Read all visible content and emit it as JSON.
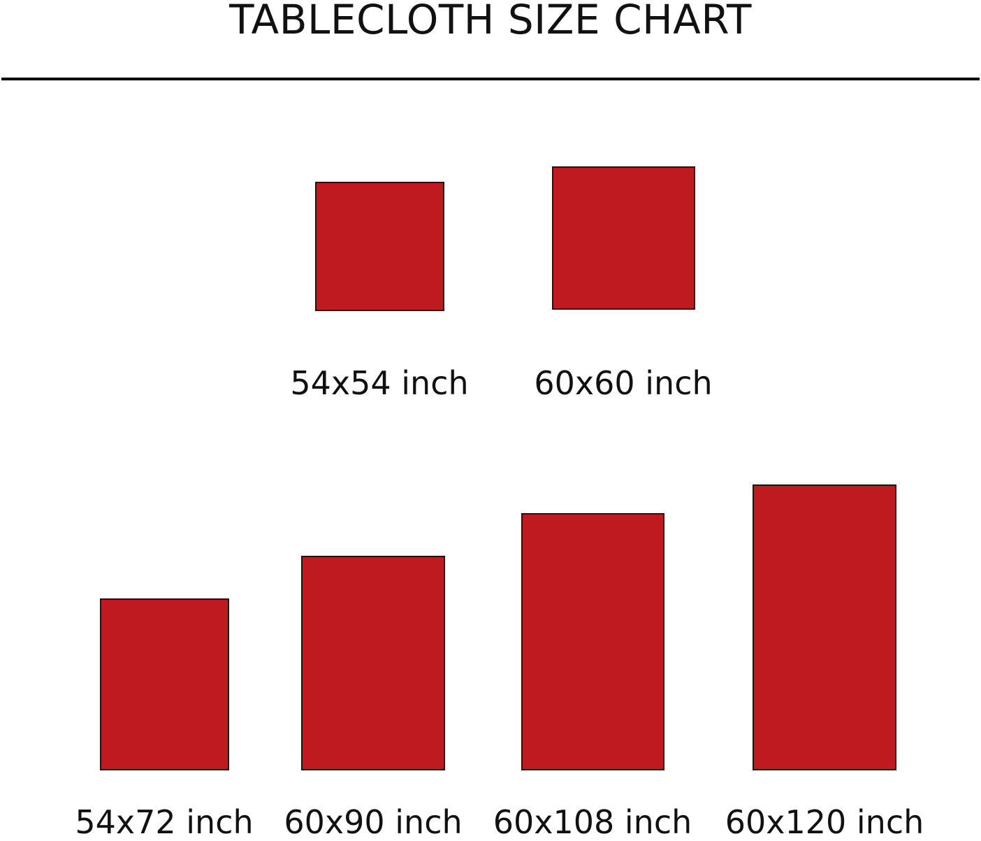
{
  "title": "TABLECLOTH SIZE CHART",
  "swatch_color": "#be1a20",
  "sizes": [
    {
      "label": "54x54 inch"
    },
    {
      "label": "60x60 inch"
    },
    {
      "label": "54x72 inch"
    },
    {
      "label": "60x90 inch"
    },
    {
      "label": "60x108 inch"
    },
    {
      "label": "60x120 inch"
    }
  ]
}
